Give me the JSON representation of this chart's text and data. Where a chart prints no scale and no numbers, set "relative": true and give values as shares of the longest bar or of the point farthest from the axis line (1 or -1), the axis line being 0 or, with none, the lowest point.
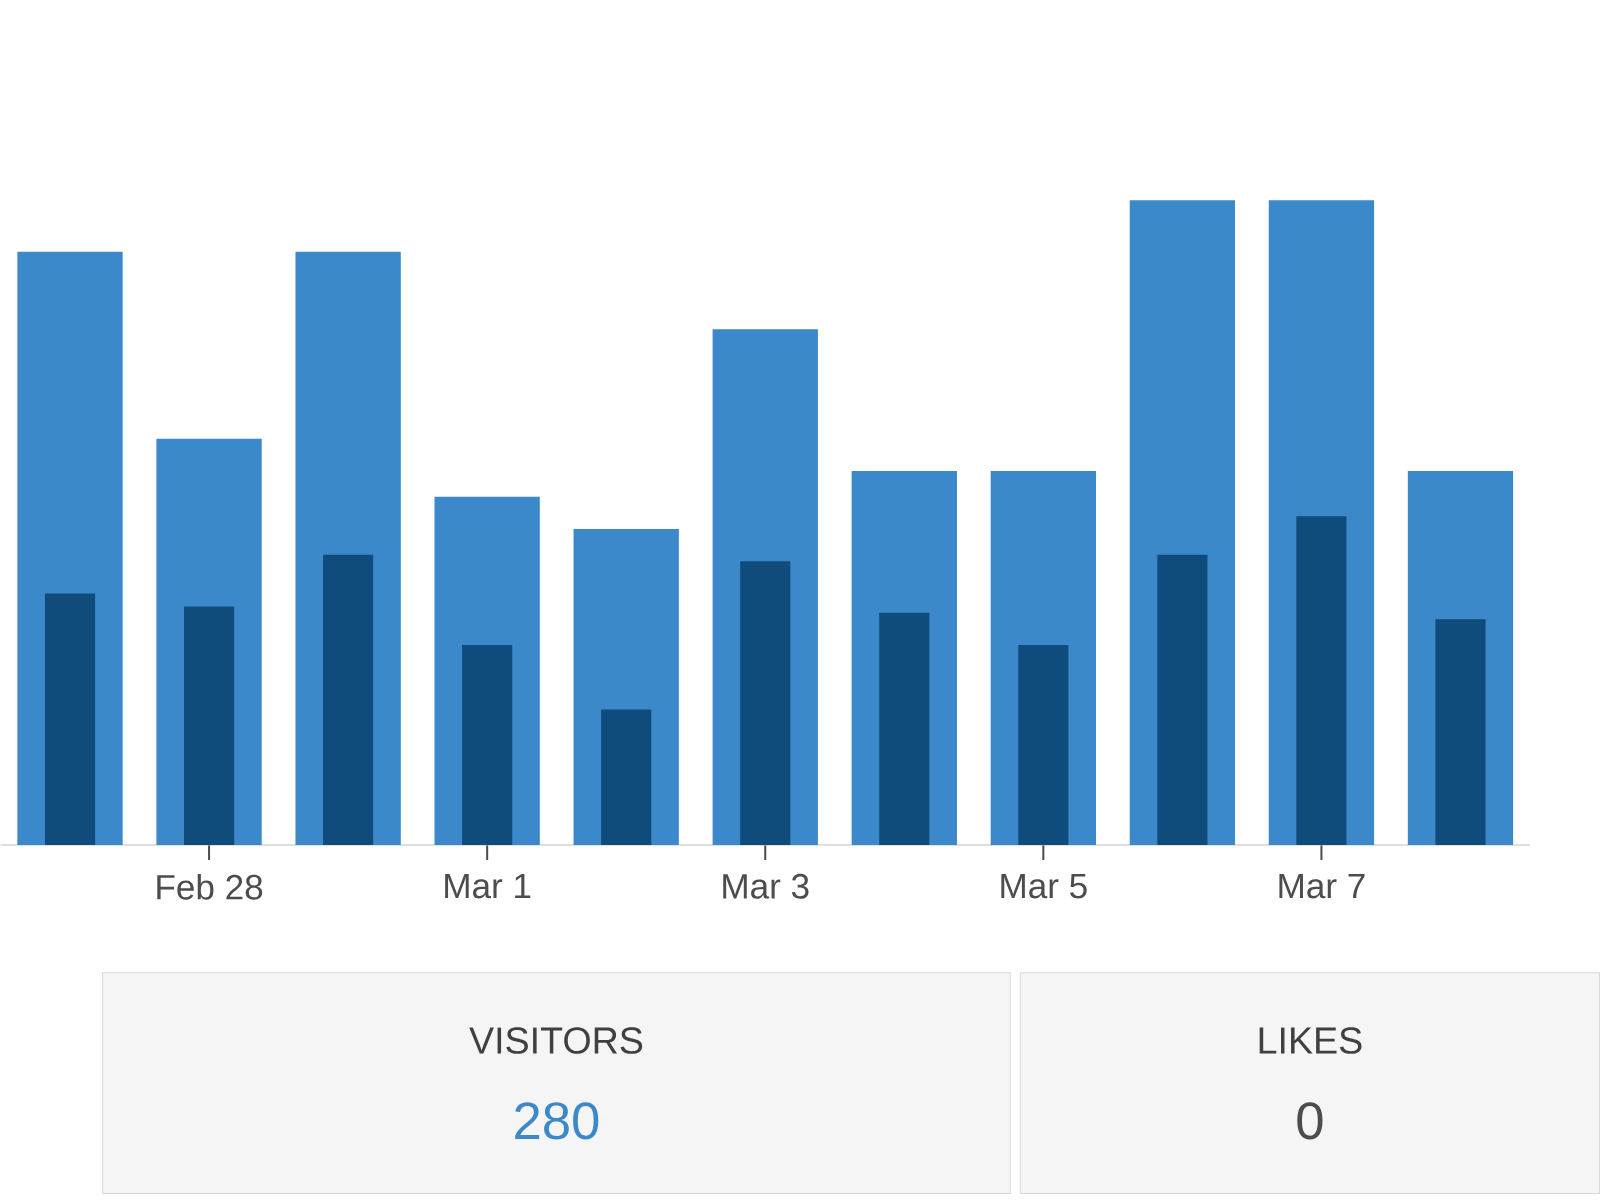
{
  "chart_data": {
    "type": "bar",
    "relative": true,
    "categories": [
      null,
      "Feb 28",
      null,
      "Mar 1",
      null,
      "Mar 3",
      null,
      "Mar 5",
      null,
      "Mar 7",
      null
    ],
    "series": [
      {
        "color": "#3b88cb",
        "values": [
          0.92,
          0.63,
          0.92,
          0.54,
          0.49,
          0.8,
          0.58,
          0.58,
          1,
          1,
          0.58
        ]
      },
      {
        "color": "#0f4c7c",
        "values": [
          0.39,
          0.37,
          0.45,
          0.31,
          0.21,
          0.44,
          0.36,
          0.31,
          0.45,
          0.51,
          0.35
        ]
      }
    ],
    "annotations": [
      "VISITORS",
      "280",
      "LIKES",
      "0"
    ]
  }
}
